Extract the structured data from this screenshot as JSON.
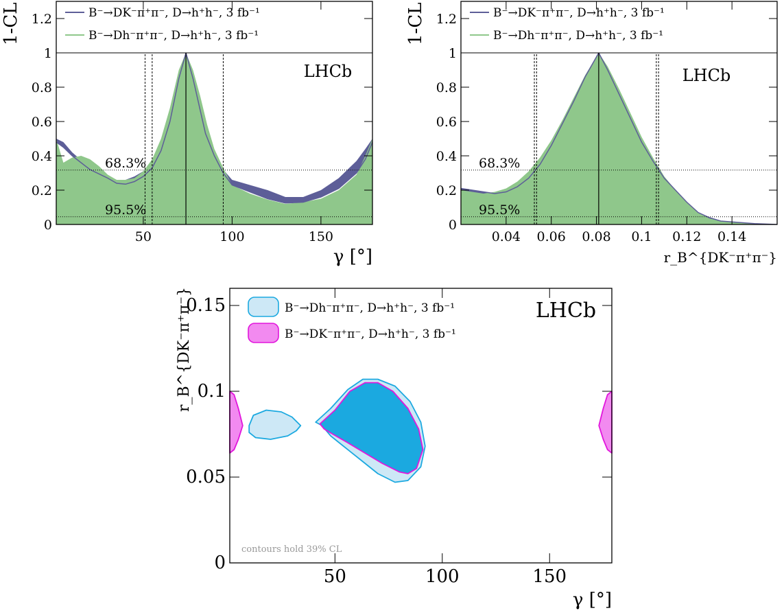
{
  "chart_data": [
    {
      "type": "area",
      "ylabel": "1-CL",
      "xlabel": "γ [°]",
      "xlim": [
        1,
        179
      ],
      "ylim": [
        0,
        1.3
      ],
      "xticks": [
        "50",
        "100",
        "150"
      ],
      "yticks": [
        "0",
        "0.2",
        "0.4",
        "0.6",
        "0.8",
        "1",
        "1.2"
      ],
      "watermark": "LHCb",
      "cl_labels": [
        "68.3%",
        "95.5%"
      ],
      "cl_levels": [
        0.317,
        0.045
      ],
      "legend": [
        {
          "text": "B⁻→DK⁻π⁺π⁻,  D→h⁺h⁻,  3 fb⁻¹",
          "color": "#5d5e98"
        },
        {
          "text": "B⁻→Dh⁻π⁺π⁻,  D→h⁺h⁻,  3 fb⁻¹",
          "color": "#8fc78b"
        }
      ],
      "central_value": 74,
      "interval_lines": [
        51,
        55,
        95
      ],
      "series": [
        {
          "name": "B⁻→DK⁻π⁺π⁻,  D→h⁺h⁻,  3 fb⁻¹",
          "color": "#5d5e98",
          "x": [
            1,
            5,
            10,
            20,
            30,
            35,
            40,
            45,
            50,
            55,
            60,
            65,
            70,
            74,
            78,
            85,
            90,
            95,
            100,
            110,
            120,
            130,
            140,
            150,
            160,
            170,
            175,
            179
          ],
          "lo": [
            0.48,
            0.45,
            0.4,
            0.32,
            0.27,
            0.24,
            0.235,
            0.25,
            0.28,
            0.33,
            0.43,
            0.6,
            0.85,
            1.0,
            0.85,
            0.53,
            0.4,
            0.3,
            0.23,
            0.19,
            0.15,
            0.125,
            0.13,
            0.16,
            0.21,
            0.3,
            0.38,
            0.48
          ],
          "hi": [
            0.5,
            0.48,
            0.42,
            0.33,
            0.28,
            0.26,
            0.26,
            0.28,
            0.31,
            0.36,
            0.47,
            0.64,
            0.88,
            1.0,
            0.87,
            0.55,
            0.42,
            0.32,
            0.26,
            0.23,
            0.2,
            0.16,
            0.16,
            0.2,
            0.27,
            0.37,
            0.44,
            0.5
          ]
        },
        {
          "name": "B⁻→Dh⁻π⁺π⁻,  D→h⁺h⁻,  3 fb⁻¹",
          "color": "#8fc78b",
          "x": [
            1,
            5,
            10,
            15,
            20,
            25,
            30,
            35,
            40,
            45,
            50,
            55,
            60,
            65,
            70,
            74,
            78,
            82,
            86,
            90,
            95,
            100,
            110,
            120,
            130,
            140,
            150,
            160,
            170,
            175,
            179
          ],
          "y": [
            0.5,
            0.36,
            0.39,
            0.4,
            0.38,
            0.34,
            0.29,
            0.26,
            0.26,
            0.27,
            0.31,
            0.38,
            0.5,
            0.68,
            0.9,
            1.0,
            0.9,
            0.75,
            0.58,
            0.44,
            0.33,
            0.23,
            0.18,
            0.145,
            0.12,
            0.13,
            0.15,
            0.2,
            0.29,
            0.4,
            0.5
          ]
        }
      ]
    },
    {
      "type": "area",
      "ylabel": "1-CL",
      "xlabel": "r_B^{DK⁻π⁺π⁻}",
      "xlim": [
        0.02,
        0.16
      ],
      "ylim": [
        0,
        1.3
      ],
      "xticks": [
        "0.04",
        "0.06",
        "0.08",
        "0.1",
        "0.12",
        "0.14"
      ],
      "yticks": [
        "0",
        "0.2",
        "0.4",
        "0.6",
        "0.8",
        "1",
        "1.2"
      ],
      "watermark": "LHCb",
      "cl_labels": [
        "68.3%",
        "95.5%"
      ],
      "cl_levels": [
        0.317,
        0.045
      ],
      "legend": [
        {
          "text": "B⁻→DK⁻π⁺π⁻,  D→h⁺h⁻,  3 fb⁻¹",
          "color": "#5d5e98"
        },
        {
          "text": "B⁻→Dh⁻π⁺π⁻,  D→h⁺h⁻,  3 fb⁻¹",
          "color": "#8fc78b"
        }
      ],
      "central_value": 0.081,
      "interval_lines": [
        0.0525,
        0.0535,
        0.1065,
        0.1075
      ],
      "series": [
        {
          "name": "B⁻→DK⁻π⁺π⁻,  D→h⁺h⁻,  3 fb⁻¹",
          "color": "#5d5e98",
          "x": [
            0.02,
            0.025,
            0.03,
            0.035,
            0.04,
            0.045,
            0.05,
            0.055,
            0.06,
            0.065,
            0.07,
            0.075,
            0.081,
            0.085,
            0.09,
            0.095,
            0.1,
            0.105,
            0.11,
            0.115,
            0.12,
            0.125,
            0.13,
            0.135,
            0.14,
            0.145,
            0.15,
            0.16
          ],
          "y": [
            0.21,
            0.2,
            0.19,
            0.18,
            0.19,
            0.22,
            0.27,
            0.35,
            0.46,
            0.59,
            0.72,
            0.86,
            1.0,
            0.9,
            0.76,
            0.62,
            0.48,
            0.37,
            0.27,
            0.2,
            0.13,
            0.07,
            0.04,
            0.02,
            0.015,
            0.01,
            0.005,
            0.0
          ]
        },
        {
          "name": "B⁻→Dh⁻π⁺π⁻,  D→h⁺h⁻,  3 fb⁻¹",
          "color": "#8fc78b",
          "x": [
            0.02,
            0.025,
            0.03,
            0.035,
            0.04,
            0.045,
            0.05,
            0.055,
            0.06,
            0.065,
            0.07,
            0.075,
            0.081,
            0.085,
            0.09,
            0.095,
            0.1,
            0.105,
            0.11,
            0.115,
            0.12,
            0.125,
            0.13,
            0.135,
            0.14,
            0.145,
            0.15,
            0.16
          ],
          "y": [
            0.2,
            0.19,
            0.18,
            0.19,
            0.21,
            0.25,
            0.31,
            0.39,
            0.49,
            0.61,
            0.74,
            0.87,
            1.0,
            0.92,
            0.79,
            0.65,
            0.51,
            0.39,
            0.28,
            0.2,
            0.13,
            0.07,
            0.035,
            0.02,
            0.012,
            0.008,
            0.004,
            0.0
          ]
        }
      ]
    },
    {
      "type": "contour",
      "xlabel": "γ [°]",
      "ylabel": "r_B^{DK⁻π⁺π⁻}",
      "xlim": [
        1,
        179
      ],
      "ylim": [
        0,
        0.16
      ],
      "xticks": [
        "50",
        "100",
        "150"
      ],
      "yticks": [
        "0",
        "0.05",
        "0.1",
        "0.15"
      ],
      "watermark": "LHCb",
      "note": "contours hold 39% CL",
      "legend": [
        {
          "text": "B⁻→Dh⁻π⁺π⁻, D→h⁺h⁻, 3 fb⁻¹",
          "color": "#1ba9e0",
          "fill": "#cde8f6"
        },
        {
          "text": "B⁻→DK⁻π⁺π⁻, D→h⁺h⁻, 3 fb⁻¹",
          "color": "#e116dc",
          "fill": "#f28af0"
        }
      ],
      "series": [
        {
          "name": "B⁻→Dh⁻π⁺π⁻, D→h⁺h⁻, 3 fb⁻¹",
          "color": "#1ba9e0",
          "fill": "#cde8f6",
          "contours": [
            [
              [
                10,
                0.08
              ],
              [
                12,
                0.086
              ],
              [
                18,
                0.089
              ],
              [
                25,
                0.088
              ],
              [
                30,
                0.085
              ],
              [
                34,
                0.08
              ],
              [
                32,
                0.077
              ],
              [
                28,
                0.074
              ],
              [
                20,
                0.072
              ],
              [
                13,
                0.073
              ],
              [
                10,
                0.076
              ]
            ],
            [
              [
                41,
                0.082
              ],
              [
                48,
                0.09
              ],
              [
                56,
                0.101
              ],
              [
                63,
                0.107
              ],
              [
                70,
                0.107
              ],
              [
                78,
                0.103
              ],
              [
                85,
                0.094
              ],
              [
                90,
                0.082
              ],
              [
                92,
                0.068
              ],
              [
                90,
                0.056
              ],
              [
                84,
                0.048
              ],
              [
                78,
                0.047
              ],
              [
                70,
                0.052
              ],
              [
                62,
                0.06
              ],
              [
                54,
                0.068
              ],
              [
                48,
                0.074
              ],
              [
                44,
                0.08
              ]
            ]
          ]
        },
        {
          "name": "B⁻→DK⁻π⁺π⁻, D→h⁺h⁻, 3 fb⁻¹",
          "color": "#e116dc",
          "fill": "#f28af0",
          "contours": [
            [
              [
                1,
                0.1
              ],
              [
                3,
                0.098
              ],
              [
                5,
                0.09
              ],
              [
                7,
                0.08
              ],
              [
                5,
                0.072
              ],
              [
                3,
                0.066
              ],
              [
                1,
                0.064
              ]
            ],
            [
              [
                179,
                0.1
              ],
              [
                177,
                0.098
              ],
              [
                175,
                0.09
              ],
              [
                173,
                0.08
              ],
              [
                175,
                0.072
              ],
              [
                177,
                0.066
              ],
              [
                179,
                0.064
              ]
            ]
          ]
        },
        {
          "name": "overlap",
          "color": "#e116dc",
          "fill": "#1ba9e0",
          "contours": [
            [
              [
                43,
                0.081
              ],
              [
                50,
                0.089
              ],
              [
                57,
                0.1
              ],
              [
                64,
                0.105
              ],
              [
                70,
                0.105
              ],
              [
                77,
                0.1
              ],
              [
                84,
                0.09
              ],
              [
                89,
                0.078
              ],
              [
                91,
                0.066
              ],
              [
                88,
                0.055
              ],
              [
                84,
                0.052
              ],
              [
                80,
                0.053
              ],
              [
                72,
                0.058
              ],
              [
                64,
                0.064
              ],
              [
                56,
                0.07
              ],
              [
                49,
                0.075
              ],
              [
                45,
                0.078
              ]
            ]
          ]
        }
      ]
    }
  ]
}
